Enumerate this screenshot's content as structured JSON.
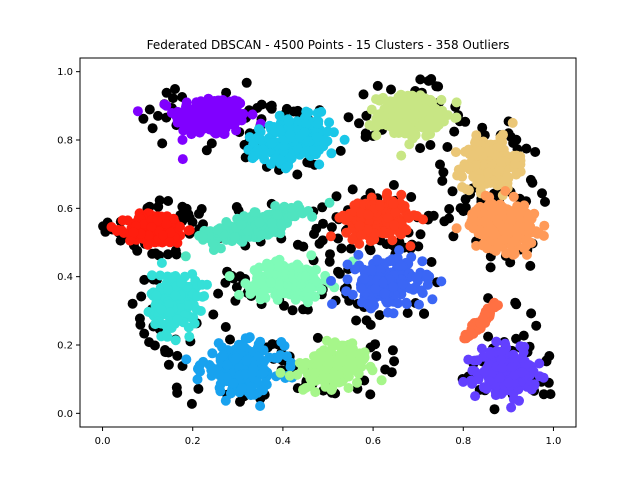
{
  "chart_data": {
    "type": "scatter",
    "title": "Federated DBSCAN - 4500 Points - 15 Clusters - 358 Outliers",
    "xlabel": "",
    "ylabel": "",
    "xlim": [
      -0.05,
      1.05
    ],
    "ylim": [
      -0.04,
      1.04
    ],
    "xticks": [
      0.0,
      0.2,
      0.4,
      0.6,
      0.8,
      1.0
    ],
    "yticks": [
      0.0,
      0.2,
      0.4,
      0.6,
      0.8,
      1.0
    ],
    "xtick_labels": [
      "0.0",
      "0.2",
      "0.4",
      "0.6",
      "0.8",
      "1.0"
    ],
    "ytick_labels": [
      "0.0",
      "0.2",
      "0.4",
      "0.6",
      "0.8",
      "1.0"
    ],
    "grid": false,
    "legend": "none",
    "outlier_color": "#000000",
    "clusters": [
      {
        "center": [
          0.24,
          0.87
        ],
        "spread": [
          0.04,
          0.03
        ],
        "color": "#8000ff"
      },
      {
        "center": [
          0.42,
          0.8
        ],
        "spread": [
          0.04,
          0.03
        ],
        "color": "#1ac7e8",
        "tilt": 0.3
      },
      {
        "center": [
          0.68,
          0.87
        ],
        "spread": [
          0.035,
          0.03
        ],
        "color": "#c8e684"
      },
      {
        "center": [
          0.86,
          0.73
        ],
        "spread": [
          0.03,
          0.035
        ],
        "color": "#ebc777"
      },
      {
        "center": [
          0.12,
          0.54
        ],
        "spread": [
          0.032,
          0.022
        ],
        "color": "#ff1d0e"
      },
      {
        "center": [
          0.34,
          0.55
        ],
        "spread": [
          0.055,
          0.015
        ],
        "color": "#4fe4c0",
        "tilt": 0.35
      },
      {
        "center": [
          0.61,
          0.57
        ],
        "spread": [
          0.035,
          0.028
        ],
        "color": "#ff3c1d"
      },
      {
        "center": [
          0.89,
          0.55
        ],
        "spread": [
          0.035,
          0.035
        ],
        "color": "#ff9a58"
      },
      {
        "center": [
          0.16,
          0.33
        ],
        "spread": [
          0.025,
          0.04
        ],
        "color": "#35e0d8"
      },
      {
        "center": [
          0.41,
          0.39
        ],
        "spread": [
          0.04,
          0.025
        ],
        "color": "#7ffbb8"
      },
      {
        "center": [
          0.63,
          0.38
        ],
        "spread": [
          0.04,
          0.035
        ],
        "color": "#3b66f5"
      },
      {
        "center": [
          0.84,
          0.27
        ],
        "spread": [
          0.022,
          0.005
        ],
        "color": "#ff7043",
        "tilt": 1.0,
        "elongated": true
      },
      {
        "center": [
          0.31,
          0.13
        ],
        "spread": [
          0.045,
          0.035
        ],
        "color": "#18a2ef"
      },
      {
        "center": [
          0.52,
          0.14
        ],
        "spread": [
          0.04,
          0.025
        ],
        "color": "#a6f68a",
        "tilt": 0.5
      },
      {
        "center": [
          0.9,
          0.12
        ],
        "spread": [
          0.03,
          0.03
        ],
        "color": "#6340ff"
      }
    ]
  }
}
